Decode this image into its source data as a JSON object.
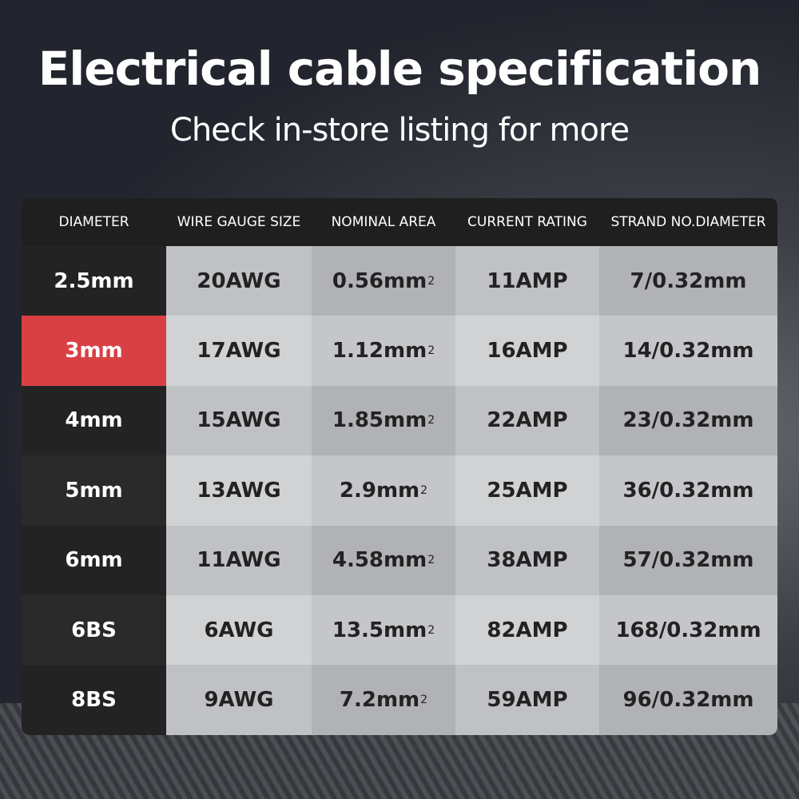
{
  "title": "Electrical cable specification",
  "subtitle": "Check in-store listing for more",
  "accent_color": "#d94044",
  "headers": [
    "DIAMETER",
    "WIRE GAUGE SIZE",
    "NOMINAL AREA",
    "CURRENT RATING",
    "STRAND NO.DIAMETER"
  ],
  "area_unit_superscript": "2",
  "rows": [
    {
      "diameter": "2.5mm",
      "gauge": "20AWG",
      "area": "0.56mm",
      "current": "11AMP",
      "strand": "7/0.32mm"
    },
    {
      "diameter": "3mm",
      "gauge": "17AWG",
      "area": "1.12mm",
      "current": "16AMP",
      "strand": "14/0.32mm",
      "highlighted": true
    },
    {
      "diameter": "4mm",
      "gauge": "15AWG",
      "area": "1.85mm",
      "current": "22AMP",
      "strand": "23/0.32mm"
    },
    {
      "diameter": "5mm",
      "gauge": "13AWG",
      "area": "2.9mm",
      "current": "25AMP",
      "strand": "36/0.32mm"
    },
    {
      "diameter": "6mm",
      "gauge": "11AWG",
      "area": "4.58mm",
      "current": "38AMP",
      "strand": "57/0.32mm"
    },
    {
      "diameter": "6BS",
      "gauge": "6AWG",
      "area": "13.5mm",
      "current": "82AMP",
      "strand": "168/0.32mm"
    },
    {
      "diameter": "8BS",
      "gauge": "9AWG",
      "area": "7.2mm",
      "current": "59AMP",
      "strand": "96/0.32mm"
    }
  ]
}
